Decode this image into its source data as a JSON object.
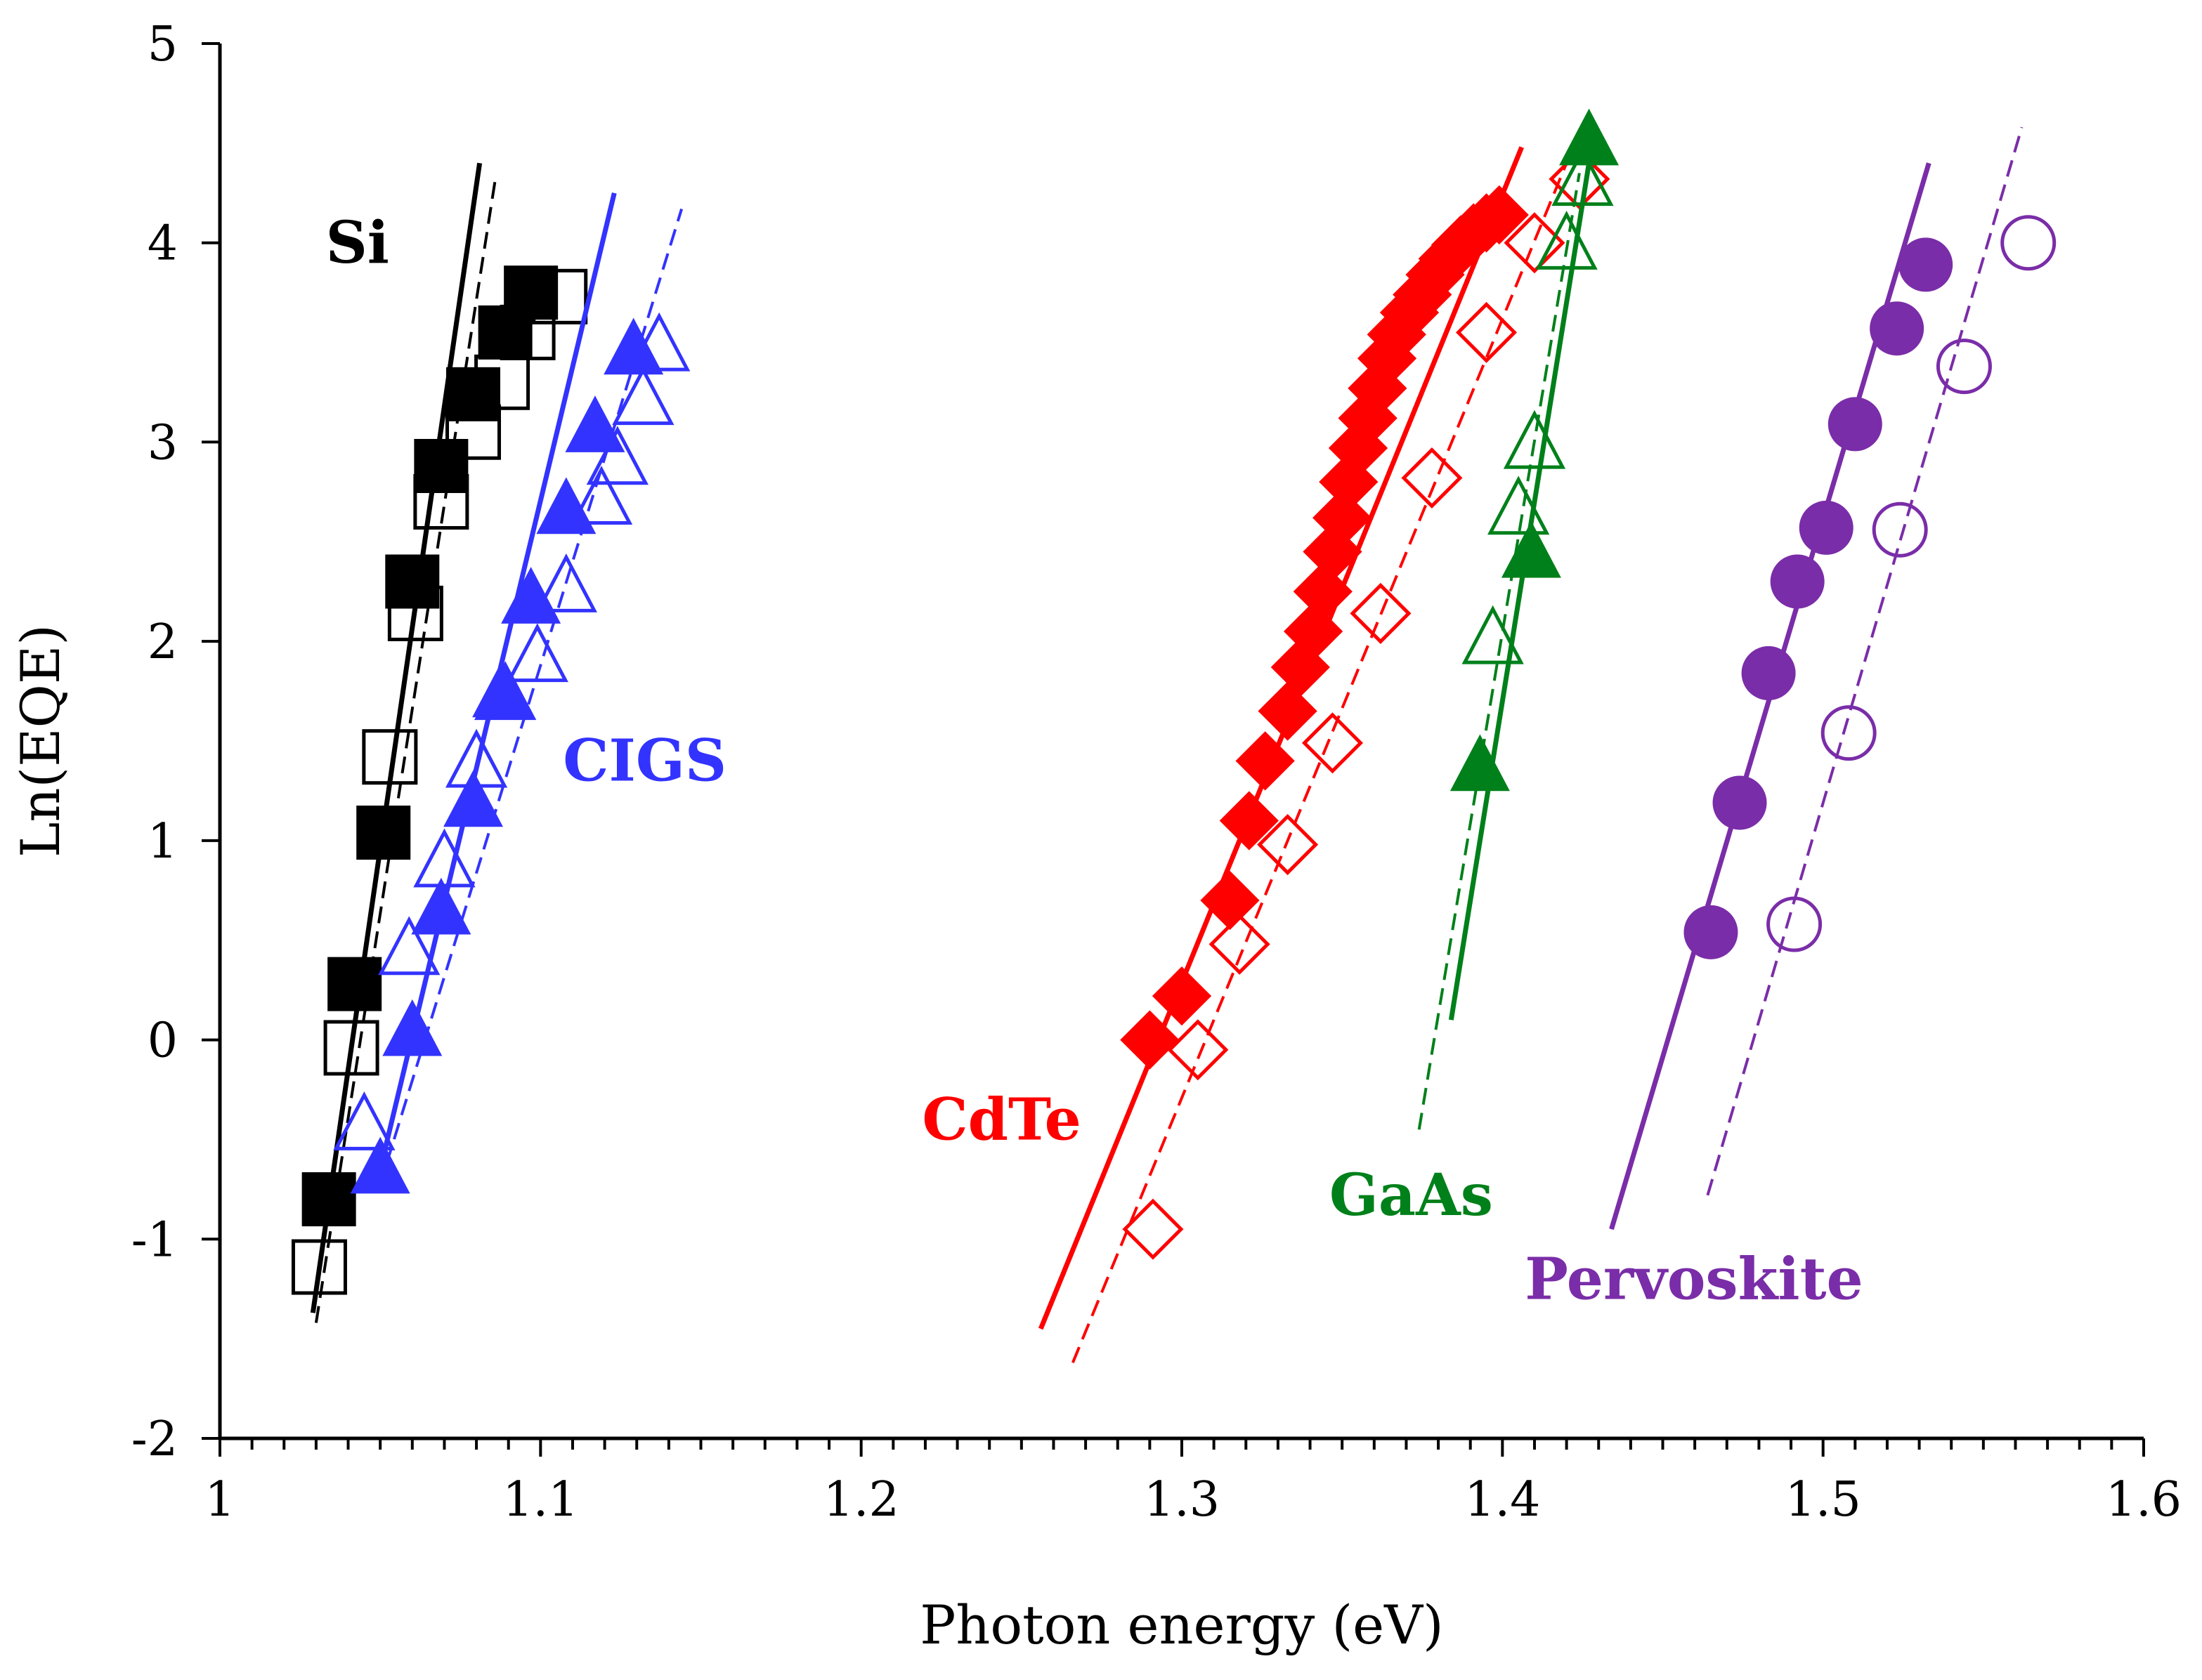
{
  "chart_data": {
    "type": "scatter",
    "title": "",
    "xlabel": "Photon energy (eV)",
    "ylabel": "Ln(EQE)",
    "xlim": [
      1.0,
      1.6
    ],
    "ylim": [
      -2,
      5
    ],
    "grid": false,
    "legend": "none",
    "x_ticks": [
      1.0,
      1.1,
      1.2,
      1.3,
      1.4,
      1.5,
      1.6
    ],
    "x_tick_labels": [
      "1",
      "1.1",
      "1.2",
      "1.3",
      "1.4",
      "1.5",
      "1.6"
    ],
    "y_ticks": [
      -2,
      -1,
      0,
      1,
      2,
      3,
      4,
      5
    ],
    "y_tick_labels": [
      "-2",
      "-1",
      "0",
      "1",
      "2",
      "3",
      "4",
      "5"
    ],
    "series": [
      {
        "name": "Si",
        "label": "Si",
        "label_at": [
          1.033,
          3.9
        ],
        "color": "#000000",
        "marker": "square",
        "filled": {
          "points": [
            [
              1.034,
              -0.8
            ],
            [
              1.042,
              0.28
            ],
            [
              1.051,
              1.04
            ],
            [
              1.06,
              2.3
            ],
            [
              1.069,
              2.88
            ],
            [
              1.079,
              3.24
            ],
            [
              1.089,
              3.55
            ],
            [
              1.097,
              3.75
            ]
          ],
          "line": [
            [
              1.029,
              -1.37
            ],
            [
              1.081,
              4.4
            ]
          ]
        },
        "open": {
          "points": [
            [
              1.031,
              -1.14
            ],
            [
              1.041,
              -0.04
            ],
            [
              1.053,
              1.42
            ],
            [
              1.061,
              2.14
            ],
            [
              1.069,
              2.7
            ],
            [
              1.079,
              3.05
            ],
            [
              1.088,
              3.3
            ],
            [
              1.096,
              3.55
            ],
            [
              1.106,
              3.73
            ]
          ],
          "line": [
            [
              1.03,
              -1.42
            ],
            [
              1.086,
              4.33
            ]
          ]
        }
      },
      {
        "name": "CIGS",
        "label": "CIGS",
        "label_at": [
          1.107,
          1.3
        ],
        "color": "#3333ff",
        "marker": "triangle",
        "filled": {
          "points": [
            [
              1.05,
              -0.66
            ],
            [
              1.06,
              0.03
            ],
            [
              1.069,
              0.64
            ],
            [
              1.079,
              1.18
            ],
            [
              1.088,
              1.73
            ],
            [
              1.097,
              2.2
            ],
            [
              1.108,
              2.65
            ],
            [
              1.117,
              3.06
            ],
            [
              1.129,
              3.45
            ]
          ],
          "line": [
            [
              1.05,
              -0.65
            ],
            [
              1.123,
              4.25
            ]
          ]
        },
        "open": {
          "points": [
            [
              1.045,
              -0.44
            ],
            [
              1.059,
              0.44
            ],
            [
              1.07,
              0.88
            ],
            [
              1.08,
              1.38
            ],
            [
              1.089,
              1.72
            ],
            [
              1.099,
              1.91
            ],
            [
              1.108,
              2.26
            ],
            [
              1.119,
              2.7
            ],
            [
              1.124,
              2.9
            ],
            [
              1.132,
              3.2
            ],
            [
              1.137,
              3.47
            ]
          ],
          "line": [
            [
              1.052,
              -0.62
            ],
            [
              1.144,
              4.17
            ]
          ]
        }
      },
      {
        "name": "CdTe",
        "label": "CdTe",
        "label_at": [
          1.219,
          -0.5
        ],
        "color": "#ff0000",
        "marker": "diamond",
        "filled": {
          "points": [
            [
              1.29,
              0.0
            ],
            [
              1.3,
              0.22
            ],
            [
              1.315,
              0.7
            ],
            [
              1.321,
              1.1
            ],
            [
              1.326,
              1.4
            ],
            [
              1.333,
              1.65
            ],
            [
              1.337,
              1.87
            ],
            [
              1.341,
              2.05
            ],
            [
              1.344,
              2.25
            ],
            [
              1.347,
              2.45
            ],
            [
              1.35,
              2.62
            ],
            [
              1.352,
              2.8
            ],
            [
              1.355,
              2.97
            ],
            [
              1.358,
              3.12
            ],
            [
              1.361,
              3.27
            ],
            [
              1.364,
              3.42
            ],
            [
              1.367,
              3.54
            ],
            [
              1.371,
              3.65
            ],
            [
              1.375,
              3.74
            ],
            [
              1.379,
              3.84
            ],
            [
              1.383,
              3.92
            ],
            [
              1.387,
              3.99
            ],
            [
              1.391,
              4.05
            ],
            [
              1.395,
              4.1
            ],
            [
              1.399,
              4.14
            ]
          ],
          "line": [
            [
              1.256,
              -1.45
            ],
            [
              1.406,
              4.48
            ]
          ]
        },
        "open": {
          "points": [
            [
              1.291,
              -0.95
            ],
            [
              1.305,
              -0.05
            ],
            [
              1.318,
              0.48
            ],
            [
              1.333,
              0.98
            ],
            [
              1.347,
              1.49
            ],
            [
              1.362,
              2.14
            ],
            [
              1.378,
              2.82
            ],
            [
              1.395,
              3.55
            ],
            [
              1.41,
              4.0
            ],
            [
              1.424,
              4.32
            ]
          ],
          "line": [
            [
              1.266,
              -1.62
            ],
            [
              1.42,
              4.4
            ]
          ]
        }
      },
      {
        "name": "GaAs",
        "label": "GaAs",
        "label_at": [
          1.346,
          -0.88
        ],
        "color": "#00801a",
        "marker": "triangle",
        "filled": {
          "points": [
            [
              1.393,
              1.36
            ],
            [
              1.409,
              2.43
            ],
            [
              1.427,
              4.5
            ]
          ],
          "line": [
            [
              1.384,
              0.1
            ],
            [
              1.427,
              4.4
            ]
          ]
        },
        "open": {
          "points": [
            [
              1.397,
              2.0
            ],
            [
              1.405,
              2.65
            ],
            [
              1.41,
              2.98
            ],
            [
              1.42,
              3.98
            ],
            [
              1.425,
              4.3
            ]
          ],
          "line": [
            [
              1.374,
              -0.45
            ],
            [
              1.424,
              4.35
            ]
          ]
        }
      },
      {
        "name": "Pervoskite",
        "label": "Pervoskite",
        "label_at": [
          1.407,
          -1.3
        ],
        "color": "#7a2da8",
        "marker": "circle",
        "filled": {
          "points": [
            [
              1.465,
              0.54
            ],
            [
              1.474,
              1.19
            ],
            [
              1.483,
              1.84
            ],
            [
              1.492,
              2.3
            ],
            [
              1.501,
              2.57
            ],
            [
              1.51,
              3.09
            ],
            [
              1.523,
              3.57
            ],
            [
              1.532,
              3.89
            ]
          ],
          "line": [
            [
              1.434,
              -0.95
            ],
            [
              1.533,
              4.4
            ]
          ]
        },
        "open": {
          "points": [
            [
              1.491,
              0.58
            ],
            [
              1.508,
              1.54
            ],
            [
              1.524,
              2.56
            ],
            [
              1.544,
              3.38
            ],
            [
              1.564,
              4.0
            ]
          ],
          "line": [
            [
              1.464,
              -0.78
            ],
            [
              1.562,
              4.58
            ]
          ]
        }
      }
    ]
  }
}
